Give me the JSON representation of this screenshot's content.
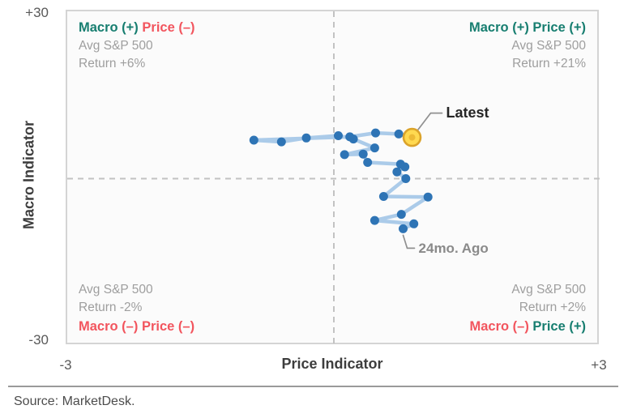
{
  "chart": {
    "y_axis": {
      "title": "Macro Indicator",
      "top_tick": "+30",
      "bottom_tick": "-30"
    },
    "x_axis": {
      "title": "Price Indicator",
      "left_tick": "-3",
      "right_tick": "+3"
    },
    "quadrants": {
      "top_left": {
        "macro": "Macro (+)",
        "macro_color": "#177e70",
        "price": "Price (–)",
        "price_color": "#f2555e",
        "line1": "Avg S&P 500",
        "line2": "Return +6%"
      },
      "top_right": {
        "macro": "Macro (+)",
        "macro_color": "#177e70",
        "price": "Price (+)",
        "price_color": "#177e70",
        "line1": "Avg S&P 500",
        "line2": "Return +21%"
      },
      "bottom_left": {
        "macro": "Macro (–)",
        "macro_color": "#f2555e",
        "price": "Price (–)",
        "price_color": "#f2555e",
        "line1": "Avg S&P 500",
        "line2": "Return -2%"
      },
      "bottom_right": {
        "macro": "Macro (–)",
        "macro_color": "#f2555e",
        "price": "Price (+)",
        "price_color": "#177e70",
        "line1": "Avg S&P 500",
        "line2": "Return +2%"
      }
    },
    "annotations": {
      "latest": "Latest",
      "oldest": "24mo. Ago"
    }
  },
  "source": "Source: MarketDesk.",
  "colors": {
    "marker_blue": "#2e74b5",
    "line_blue": "#abcbe9",
    "latest_fill": "#ffd950",
    "latest_ring": "#dba32a",
    "latest_core": "#edba35",
    "dashed_gray": "#c2c2c2",
    "leader_gray": "#909090",
    "green": "#177e70",
    "red": "#f2555e"
  },
  "chart_data": {
    "type": "scatter",
    "title": "",
    "xlabel": "Price Indicator",
    "ylabel": "Macro Indicator",
    "xlim": [
      -3,
      3
    ],
    "ylim": [
      -30,
      30
    ],
    "grid": "center dashed crosshair only",
    "legend": "none",
    "x": [
      0.78,
      0.9,
      0.46,
      0.76,
      1.06,
      0.56,
      0.81,
      0.71,
      0.8,
      0.75,
      0.38,
      0.33,
      0.12,
      0.46,
      0.22,
      0.05,
      -0.31,
      -0.59,
      -0.9,
      0.18,
      0.47,
      0.73,
      0.88
    ],
    "y": [
      -9.0,
      -8.1,
      -7.5,
      -6.4,
      -3.3,
      -3.2,
      0.0,
      1.2,
      2.1,
      2.6,
      2.9,
      4.4,
      4.3,
      5.5,
      7.1,
      7.7,
      7.3,
      6.6,
      6.9,
      7.5,
      8.2,
      8.0,
      7.4
    ],
    "oldest_index": 0,
    "latest_index": 22,
    "quadrant_avg_sp500_returns": {
      "macro_pos_price_neg": "+6%",
      "macro_pos_price_pos": "+21%",
      "macro_neg_price_neg": "-2%",
      "macro_neg_price_pos": "+2%"
    }
  }
}
